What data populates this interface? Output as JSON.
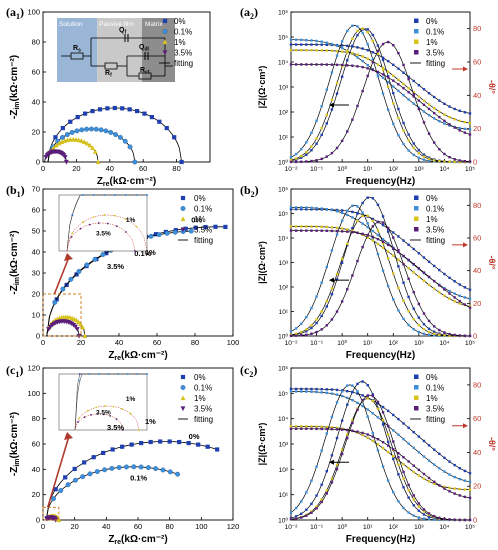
{
  "legend_labels": [
    "0%",
    "0.1%",
    "1%",
    "3.5%",
    "fitting"
  ],
  "colors": {
    "s0": "#1f3fb0",
    "s01": "#3c8fd8",
    "s1": "#d8c21c",
    "s35": "#5a1e7a",
    "fit": "#000000",
    "arrow_theta": "#c0392b",
    "inset_arrow": "#b03a2e",
    "zoom_box": "#d0781c"
  },
  "chart_data": [
    {
      "type": "scatter",
      "panel_label": "(a1)",
      "xlabel": "Zre(kΩ·cm⁻²)",
      "ylabel": "-Zim(kΩ·cm⁻²)",
      "xlim": [
        0,
        100
      ],
      "ylim": [
        0,
        100
      ],
      "xticks": [
        0,
        20,
        40,
        60,
        80
      ],
      "yticks": [
        0,
        20,
        40,
        60,
        80,
        100
      ],
      "inset": {
        "labels": [
          "Solution",
          "Passive film",
          "Matrix"
        ],
        "components": [
          "Rs",
          "Qf",
          "Rf",
          "Qdl",
          "Rct"
        ]
      },
      "series": [
        {
          "name": "0%",
          "marker": "square",
          "color_key": "s0",
          "x0": 3,
          "d": 80,
          "h": 36
        },
        {
          "name": "0.1%",
          "marker": "circle",
          "color_key": "s01",
          "x0": 3,
          "d": 52,
          "h": 22
        },
        {
          "name": "1%",
          "marker": "triangle",
          "color_key": "s1",
          "x0": 3,
          "d": 30,
          "h": 15
        },
        {
          "name": "3.5%",
          "marker": "triangle-down",
          "color_key": "s35",
          "x0": 1,
          "d": 13,
          "h": 7
        }
      ]
    },
    {
      "type": "line",
      "panel_label": "(a2)",
      "xlabel": "Frequency(Hz)",
      "ylabel": "|Z|(Ω·cm²)",
      "y2label": "-θ/°",
      "xscale": "log",
      "xlim": [
        0.01,
        100000
      ],
      "yscale": "log",
      "ylim": [
        1,
        1000000
      ],
      "y2lim": [
        0,
        90
      ],
      "xticks": [
        "10⁻²",
        "10⁻¹",
        "10⁰",
        "10¹",
        "10²",
        "10³",
        "10⁴",
        "10⁵"
      ],
      "yticks": [
        "10⁰",
        "10¹",
        "10²",
        "10³",
        "10⁴",
        "10⁵",
        "10⁶"
      ],
      "y2ticks": [
        0,
        20,
        40,
        60,
        80
      ],
      "series": [
        {
          "name": "0%",
          "color_key": "s0",
          "Zlow": 50000,
          "Zhigh": 70,
          "fcZ": 15,
          "thmax": 80,
          "fpk": 8
        },
        {
          "name": "0.1%",
          "color_key": "s01",
          "Zlow": 80000,
          "Zhigh": 18,
          "fcZ": 0.8,
          "thmax": 82,
          "fpk": 3
        },
        {
          "name": "1%",
          "color_key": "s1",
          "Zlow": 30000,
          "Zhigh": 30,
          "fcZ": 8,
          "thmax": 80,
          "fpk": 6
        },
        {
          "name": "3.5%",
          "color_key": "s35",
          "Zlow": 8000,
          "Zhigh": 8,
          "fcZ": 25,
          "thmax": 72,
          "fpk": 60
        }
      ]
    },
    {
      "type": "scatter",
      "panel_label": "(b1)",
      "xlabel": "Zre(kΩ·cm⁻²)",
      "ylabel": "-Zim(kΩ·cm⁻²)",
      "xlim": [
        0,
        100
      ],
      "ylim": [
        0,
        70
      ],
      "xticks": [
        0,
        20,
        40,
        60,
        80,
        100
      ],
      "yticks": [
        0,
        10,
        20,
        30,
        40,
        50,
        60,
        70
      ],
      "annotations": [
        "0%",
        "0.1%"
      ],
      "inset_annotations": [
        "1%",
        "3.5%"
      ],
      "series": [
        {
          "name": "0%",
          "marker": "square",
          "color_key": "s0",
          "x0": 2,
          "d": 180,
          "h": 52,
          "cut": 96
        },
        {
          "name": "0.1%",
          "marker": "circle",
          "color_key": "s01",
          "x0": 2,
          "d": 160,
          "h": 50,
          "cut": 78
        },
        {
          "name": "1%",
          "marker": "triangle",
          "color_key": "s1",
          "x0": 2,
          "d": 20,
          "h": 9
        },
        {
          "name": "3.5%",
          "marker": "triangle-down",
          "color_key": "s35",
          "x0": 2,
          "d": 17,
          "h": 7
        }
      ]
    },
    {
      "type": "line",
      "panel_label": "(b2)",
      "xlabel": "Frequency(Hz)",
      "ylabel": "|Z|(Ω·cm²)",
      "y2label": "-θ/°",
      "xscale": "log",
      "xlim": [
        0.01,
        100000
      ],
      "yscale": "log",
      "ylim": [
        1,
        1000000
      ],
      "y2lim": [
        0,
        90
      ],
      "xticks": [
        "10⁻²",
        "10⁻¹",
        "10⁰",
        "10¹",
        "10²",
        "10³",
        "10⁴",
        "10⁵"
      ],
      "yticks": [
        "10⁰",
        "10¹",
        "10²",
        "10³",
        "10⁴",
        "10⁵",
        "10⁶"
      ],
      "y2ticks": [
        0,
        20,
        40,
        60,
        80
      ],
      "series": [
        {
          "name": "0%",
          "color_key": "s0",
          "Zlow": 150000,
          "Zhigh": 40,
          "fcZ": 10,
          "thmax": 85,
          "fpk": 12
        },
        {
          "name": "0.1%",
          "color_key": "s01",
          "Zlow": 180000,
          "Zhigh": 25,
          "fcZ": 1.5,
          "thmax": 80,
          "fpk": 3
        },
        {
          "name": "1%",
          "color_key": "s1",
          "Zlow": 30000,
          "Zhigh": 12,
          "fcZ": 5,
          "thmax": 74,
          "fpk": 8
        },
        {
          "name": "3.5%",
          "color_key": "s35",
          "Zlow": 20000,
          "Zhigh": 5,
          "fcZ": 20,
          "thmax": 70,
          "fpk": 30
        }
      ]
    },
    {
      "type": "scatter",
      "panel_label": "(c1)",
      "xlabel": "Zre(kΩ·cm⁻²)",
      "ylabel": "-Zim(kΩ·cm⁻²)",
      "xlim": [
        0,
        120
      ],
      "ylim": [
        0,
        120
      ],
      "xticks": [
        0,
        20,
        40,
        60,
        80,
        100,
        120
      ],
      "yticks": [
        0,
        20,
        40,
        60,
        80,
        100,
        120
      ],
      "annotations": [
        "0%",
        "0.1%"
      ],
      "inset_annotations": [
        "1%",
        "3.5%"
      ],
      "series": [
        {
          "name": "0%",
          "marker": "square",
          "color_key": "s0",
          "x0": 2,
          "d": 150,
          "h": 62,
          "cut": 110
        },
        {
          "name": "0.1%",
          "marker": "circle",
          "color_key": "s01",
          "x0": 2,
          "d": 110,
          "h": 42,
          "cut": 85
        },
        {
          "name": "1%",
          "marker": "triangle",
          "color_key": "s1",
          "x0": 2,
          "d": 8,
          "h": 3
        },
        {
          "name": "3.5%",
          "marker": "triangle-down",
          "color_key": "s35",
          "x0": 2,
          "d": 6,
          "h": 2
        }
      ]
    },
    {
      "type": "line",
      "panel_label": "(c2)",
      "xlabel": "Frequency(Hz)",
      "ylabel": "|Z|(Ω·cm²)",
      "y2label": "-θ/°",
      "xscale": "log",
      "xlim": [
        0.01,
        100000
      ],
      "yscale": "log",
      "ylim": [
        1,
        1000000
      ],
      "y2lim": [
        0,
        90
      ],
      "xticks": [
        "10⁻²",
        "10⁻¹",
        "10⁰",
        "10¹",
        "10²",
        "10³",
        "10⁴",
        "10⁵"
      ],
      "yticks": [
        "10⁰",
        "10¹",
        "10²",
        "10³",
        "10⁴",
        "10⁵",
        "10⁶"
      ],
      "y2ticks": [
        0,
        20,
        40,
        60,
        80
      ],
      "series": [
        {
          "name": "0%",
          "color_key": "s0",
          "Zlow": 150000,
          "Zhigh": 40,
          "fcZ": 8,
          "thmax": 82,
          "fpk": 6
        },
        {
          "name": "0.1%",
          "color_key": "s01",
          "Zlow": 120000,
          "Zhigh": 25,
          "fcZ": 2,
          "thmax": 80,
          "fpk": 2
        },
        {
          "name": "1%",
          "color_key": "s1",
          "Zlow": 5000,
          "Zhigh": 15,
          "fcZ": 5,
          "thmax": 72,
          "fpk": 10
        },
        {
          "name": "3.5%",
          "color_key": "s35",
          "Zlow": 4000,
          "Zhigh": 6,
          "fcZ": 15,
          "thmax": 74,
          "fpk": 12
        }
      ]
    }
  ]
}
